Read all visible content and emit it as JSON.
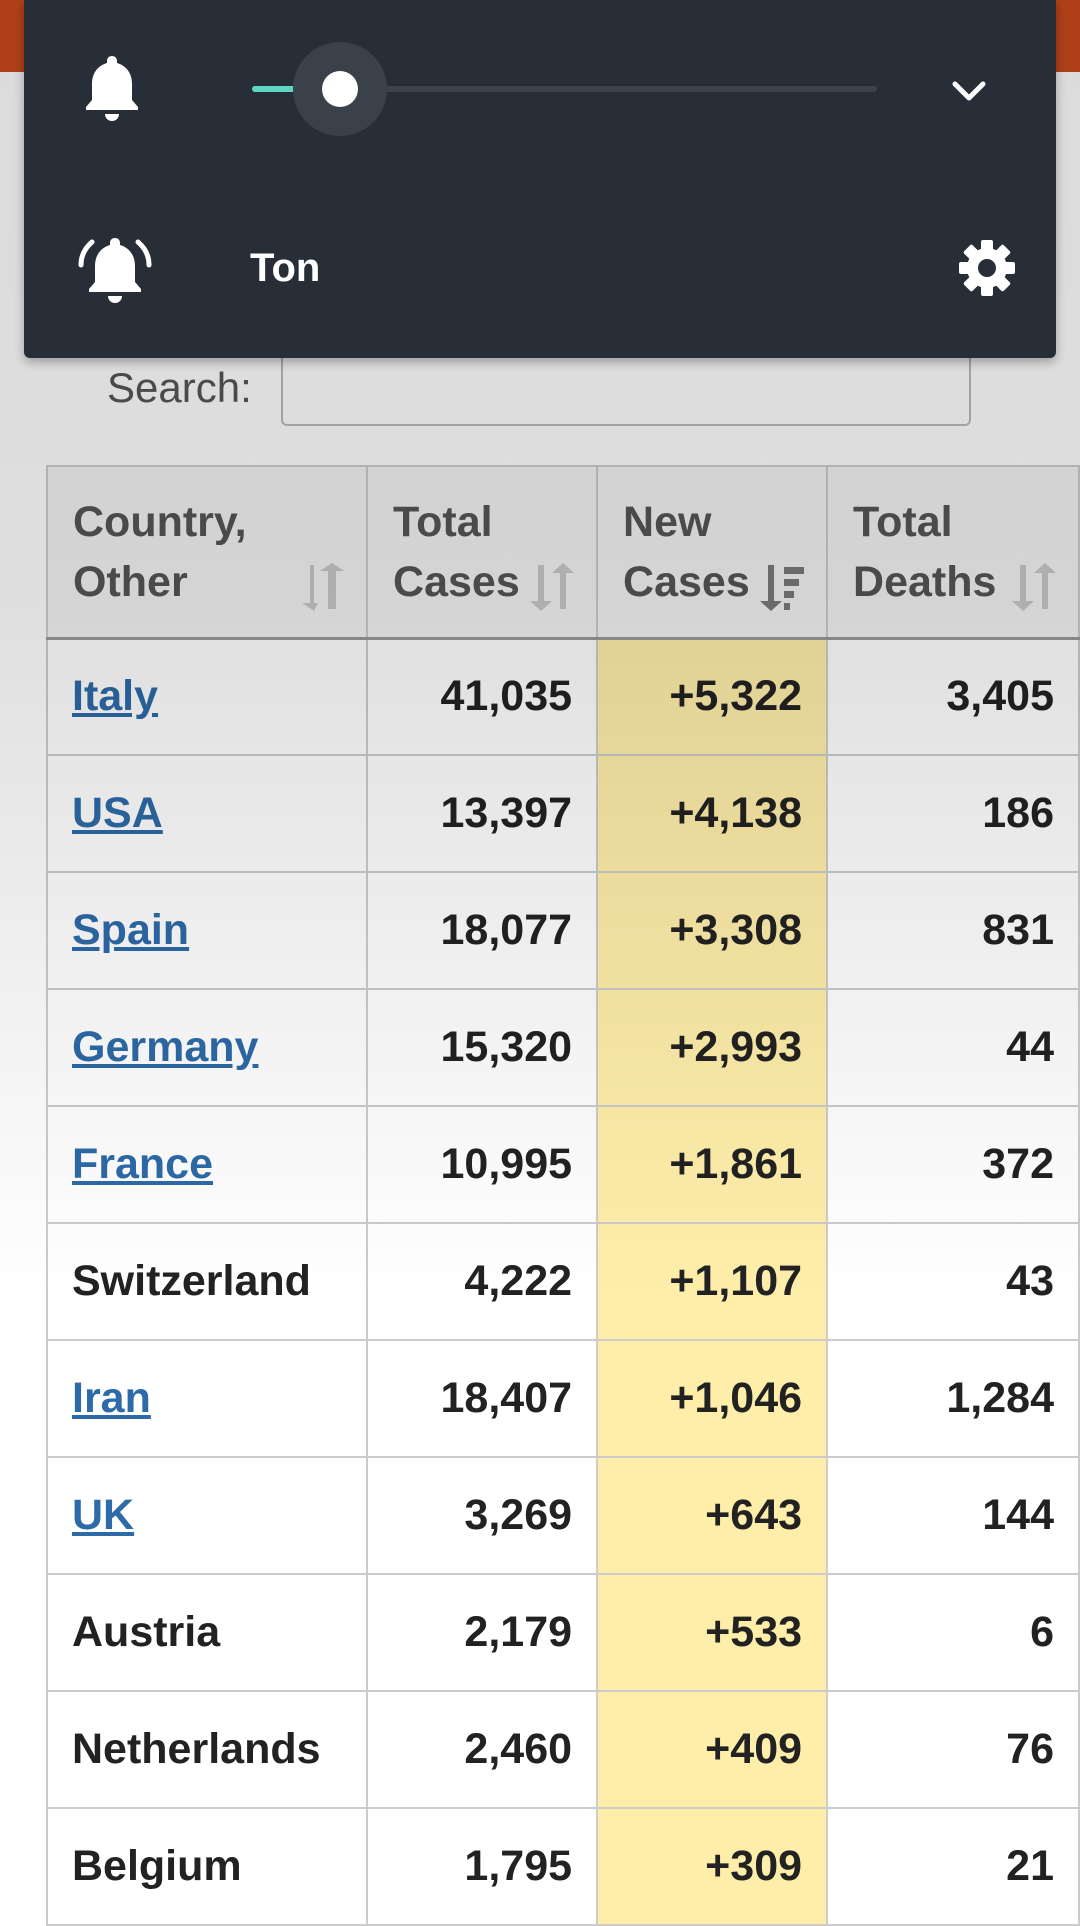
{
  "volume_panel": {
    "media_volume_percent": 14,
    "ringer_label": "Ton",
    "icons": [
      "bell-icon",
      "bell-ringing-icon",
      "chevron-down-icon",
      "gear-icon"
    ]
  },
  "search": {
    "label": "Search:",
    "value": ""
  },
  "table": {
    "headers": [
      {
        "line1": "Country,",
        "line2": "Other"
      },
      {
        "line1": "Total",
        "line2": "Cases"
      },
      {
        "line1": "New",
        "line2": "Cases"
      },
      {
        "line1": "Total",
        "line2": "Deaths"
      }
    ],
    "rows": [
      {
        "country": "Italy",
        "total_cases": "41,035",
        "new_cases": "+5,322",
        "total_deaths": "3,405"
      },
      {
        "country": "USA",
        "total_cases": "13,397",
        "new_cases": "+4,138",
        "total_deaths": "186"
      },
      {
        "country": "Spain",
        "total_cases": "18,077",
        "new_cases": "+3,308",
        "total_deaths": "831"
      },
      {
        "country": "Germany",
        "total_cases": "15,320",
        "new_cases": "+2,993",
        "total_deaths": "44"
      },
      {
        "country": "France",
        "total_cases": "10,995",
        "new_cases": "+1,861",
        "total_deaths": "372"
      },
      {
        "country": "Switzerland",
        "total_cases": "4,222",
        "new_cases": "+1,107",
        "total_deaths": "43"
      },
      {
        "country": "Iran",
        "total_cases": "18,407",
        "new_cases": "+1,046",
        "total_deaths": "1,284"
      },
      {
        "country": "UK",
        "total_cases": "3,269",
        "new_cases": "+643",
        "total_deaths": "144"
      },
      {
        "country": "Austria",
        "total_cases": "2,179",
        "new_cases": "+533",
        "total_deaths": "6"
      },
      {
        "country": "Netherlands",
        "total_cases": "2,460",
        "new_cases": "+409",
        "total_deaths": "76"
      },
      {
        "country": "Belgium",
        "total_cases": "1,795",
        "new_cases": "+309",
        "total_deaths": "21"
      }
    ]
  },
  "colors": {
    "panel_bg": "#282e38",
    "slider_accent": "#5ed6c5",
    "link": "#2d6aa8",
    "new_cases_highlight": "#ffeeaa",
    "top_bar": "#cc4a1c"
  }
}
